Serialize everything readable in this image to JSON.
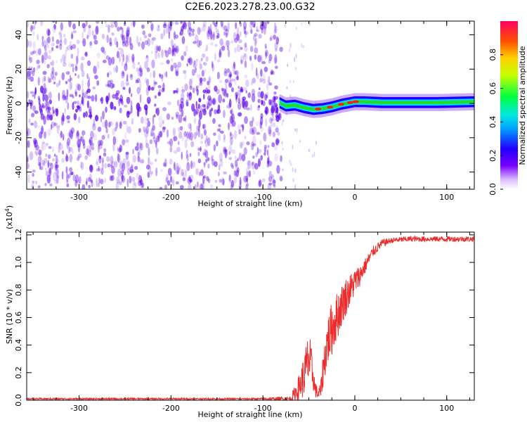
{
  "title": "C2E6.2023.278.23.00.G32",
  "colors": {
    "snr_line": "#ee2a2a",
    "spectrum_noise": "#5a00e8",
    "spectrum_track_outer": "#1a00ff",
    "spectrum_track_mid": "#00d8ff",
    "spectrum_track_core": "#22dd22",
    "spectrum_peak": "#ff1a1a"
  },
  "chart_data": [
    {
      "type": "heatmap",
      "title": "C2E6.2023.278.23.00.G32",
      "xlabel": "Height of straight line (km)",
      "ylabel": "Frequency (Hz)",
      "xlim": [
        -357,
        130
      ],
      "ylim": [
        -50,
        48
      ],
      "x_ticks": [
        -300,
        -200,
        -100,
        0,
        100
      ],
      "y_ticks": [
        -40,
        -20,
        0,
        20,
        40
      ],
      "x_tick_labels": [
        "-300",
        "-200",
        "-100",
        "0",
        "100"
      ],
      "y_tick_labels": [
        "-40",
        "-20",
        "0",
        "20",
        "40"
      ],
      "noise_region_x": [
        -357,
        -80
      ],
      "track": {
        "x": [
          -82,
          -75,
          -65,
          -55,
          -45,
          -35,
          -25,
          -15,
          -5,
          0,
          10,
          30,
          60,
          90,
          130
        ],
        "y": [
          0.5,
          -1.5,
          -1.0,
          -2.5,
          -3.5,
          -3.0,
          -2.0,
          -0.5,
          0.5,
          1.0,
          1.0,
          0.5,
          0.5,
          0.5,
          1.0
        ],
        "peaks_x": [
          -40,
          -27,
          -15,
          -5,
          1
        ]
      },
      "colorbar": {
        "label": "Normalized spectral amplitude",
        "range": [
          0,
          1
        ],
        "ticks": [
          0.0,
          0.2,
          0.4,
          0.6,
          0.8
        ],
        "tick_labels": [
          "0.0",
          "0.2",
          "0.4",
          "0.6",
          "0.8"
        ]
      },
      "grid": false
    },
    {
      "type": "line",
      "xlabel": "Height of straight line (km)",
      "ylabel": "SNR (10 * v/v)",
      "y_multiplier_label": "(x10",
      "y_multiplier_exp": "4",
      "y_multiplier_close": ")",
      "xlim": [
        -357,
        130
      ],
      "ylim": [
        0,
        1.22
      ],
      "x_ticks": [
        -300,
        -200,
        -100,
        0,
        100
      ],
      "y_ticks": [
        0.0,
        0.2,
        0.4,
        0.6,
        0.8,
        1.0,
        1.2
      ],
      "x_tick_labels": [
        "-300",
        "-200",
        "-100",
        "0",
        "100"
      ],
      "y_tick_labels": [
        "0.0",
        "0.2",
        "0.4",
        "0.6",
        "0.8",
        "1.0",
        "1.2"
      ],
      "series": [
        {
          "x": [
            -357,
            -300,
            -200,
            -100,
            -70,
            -65,
            -60,
            -55,
            -50,
            -46,
            -43,
            -40,
            -37,
            -34,
            -30,
            -25,
            -20,
            -15,
            -10,
            -5,
            0,
            5,
            10,
            15,
            20,
            30,
            40,
            60,
            80,
            100,
            130
          ],
          "values": [
            0.01,
            0.01,
            0.01,
            0.01,
            0.01,
            0.05,
            0.1,
            0.18,
            0.3,
            0.2,
            0.08,
            0.04,
            0.07,
            0.25,
            0.42,
            0.52,
            0.6,
            0.68,
            0.75,
            0.8,
            0.86,
            0.9,
            0.96,
            1.02,
            1.08,
            1.14,
            1.16,
            1.17,
            1.17,
            1.17,
            1.17
          ],
          "noise": [
            0.006,
            0.006,
            0.006,
            0.006,
            0.02,
            0.06,
            0.1,
            0.16,
            0.22,
            0.12,
            0.06,
            0.04,
            0.07,
            0.14,
            0.18,
            0.2,
            0.18,
            0.16,
            0.14,
            0.12,
            0.1,
            0.08,
            0.06,
            0.05,
            0.04,
            0.03,
            0.02,
            0.02,
            0.02,
            0.02,
            0.02
          ]
        }
      ],
      "grid": false
    }
  ]
}
